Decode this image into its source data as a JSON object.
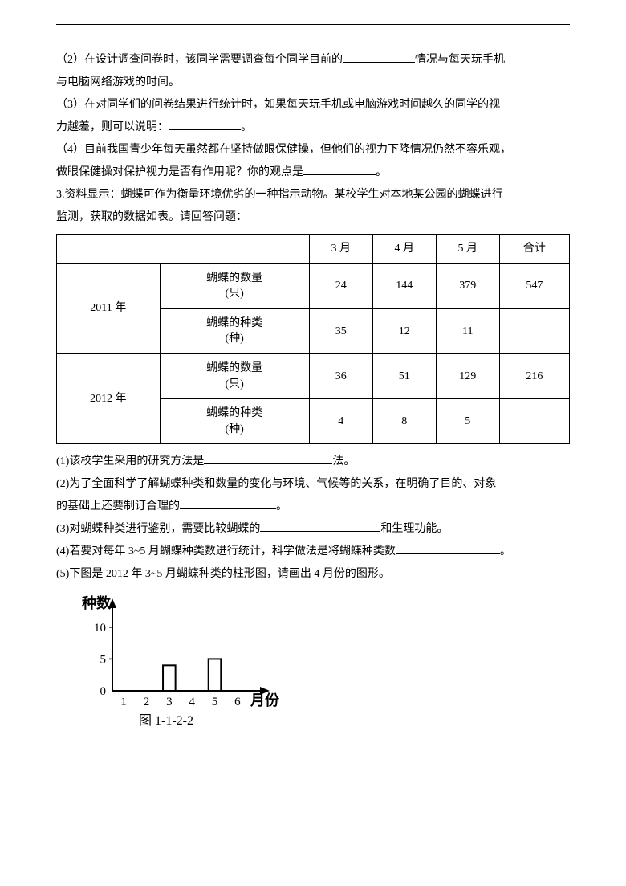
{
  "q2": {
    "p2_a": "（2）在设计调查问卷时，该同学需要调查每个同学目前的",
    "p2_b": "情况与每天玩手机",
    "p2_c": "与电脑网络游戏的时间。",
    "p3_a": "（3）在对同学们的问卷结果进行统计时，如果每天玩手机或电脑游戏时间越久的同学的视",
    "p3_b": "力越差，则可以说明：",
    "p3_c": "。",
    "p4_a": "（4）目前我国青少年每天虽然都在坚持做眼保健操，但他们的视力下降情况仍然不容乐观，",
    "p4_b": "做眼保健操对保护视力是否有作用呢？你的观点是",
    "p4_c": "。"
  },
  "q3": {
    "intro_a": "3.资料显示：蝴蝶可作为衡量环境优劣的一种指示动物。某校学生对本地某公园的蝴蝶进行",
    "intro_b": "监测，获取的数据如表。请回答问题：",
    "table": {
      "headers": [
        "",
        "",
        "3 月",
        "4 月",
        "5 月",
        "合计"
      ],
      "row_year1": "2011 年",
      "row_year2": "2012 年",
      "row_qty": "蝴蝶的数量\n(只)",
      "row_kind": "蝴蝶的种类\n(种)",
      "r1": [
        "24",
        "144",
        "379",
        "547"
      ],
      "r2": [
        "35",
        "12",
        "11",
        ""
      ],
      "r3": [
        "36",
        "51",
        "129",
        "216"
      ],
      "r4": [
        "4",
        "8",
        "5",
        ""
      ]
    },
    "sub1_a": "(1)该校学生采用的研究方法是",
    "sub1_b": "法。",
    "sub2_a": "(2)为了全面科学了解蝴蝶种类和数量的变化与环境、气候等的关系，在明确了目的、对象",
    "sub2_b": "的基础上还要制订合理的",
    "sub2_c": "。",
    "sub3_a": "(3)对蝴蝶种类进行鉴别，需要比较蝴蝶的",
    "sub3_b": "和生理功能。",
    "sub4_a": "(4)若要对每年 3~5 月蝴蝶种类数进行统计，科学做法是将蝴蝶种类数",
    "sub4_b": "。",
    "sub5": "(5)下图是 2012 年 3~5 月蝴蝶种类的柱形图，请画出 4 月份的图形。"
  },
  "chart": {
    "type": "bar",
    "y_label": "种数",
    "x_label": "月份",
    "caption": "图 1-1-2-2",
    "x_ticks": [
      "1",
      "2",
      "3",
      "4",
      "5",
      "6"
    ],
    "y_ticks": [
      "0",
      "5",
      "10"
    ],
    "y_tick_positions": [
      0,
      5,
      10
    ],
    "ylim": [
      0,
      12
    ],
    "bars": [
      {
        "x": 3,
        "value": 4
      },
      {
        "x": 5,
        "value": 5
      }
    ],
    "axis_color": "#000000",
    "bar_fill": "#ffffff",
    "bar_stroke": "#000000",
    "label_fontsize": 18,
    "tick_fontsize": 15,
    "caption_fontsize": 16,
    "bar_width_ratio": 0.55
  }
}
